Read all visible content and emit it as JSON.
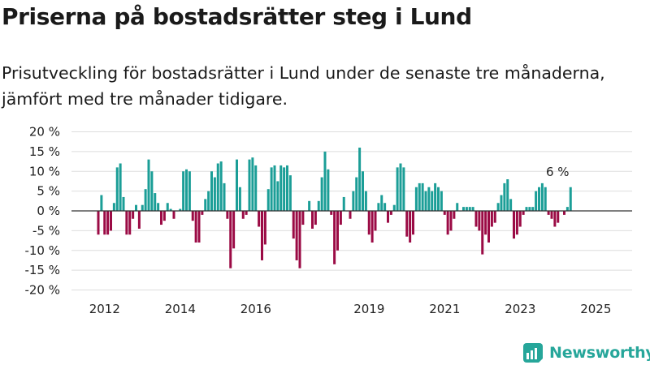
{
  "header": {
    "title": "Priserna på bostadsrätter steg i Lund",
    "subtitle": "Prisutveckling för bostadsrätter i Lund under de senaste tre månaderna, jämfört med tre månader tidigare."
  },
  "logo": {
    "text": "Newsworthy",
    "icon": "newsworthy-bar-chart-icon"
  },
  "colors": {
    "positive": "#1b9e97",
    "negative": "#9b0b45",
    "grid": "#dedede",
    "zero_line": "#333333"
  },
  "chart_data": {
    "type": "bar",
    "start": "2011-11",
    "frequency": "monthly",
    "x_ticks": [
      "2012",
      "2014",
      "2016",
      "2019",
      "2021",
      "2023",
      "2025"
    ],
    "y_ticks": [
      "20 %",
      "15 %",
      "10 %",
      "5 %",
      "0 %",
      "-5 %",
      "-10 %",
      "-15 %",
      "-20 %"
    ],
    "ylim": [
      -20,
      20
    ],
    "grid": true,
    "annotation": {
      "text": "6 %",
      "value": 6
    },
    "values": [
      -6,
      4,
      -6,
      -6,
      -5,
      2,
      11,
      12,
      3.5,
      -6,
      -6,
      -2,
      1.5,
      -4.5,
      1.5,
      5.5,
      13,
      10,
      4.5,
      2,
      -3.5,
      -2.5,
      2,
      0.5,
      -2,
      0,
      0.5,
      10,
      10.5,
      10,
      -2.5,
      -8,
      -8,
      -1,
      3,
      5,
      10,
      8.5,
      12,
      12.5,
      7,
      -2,
      -14.5,
      -9.5,
      13,
      6,
      -2,
      -1,
      13,
      13.5,
      11.5,
      -4,
      -12.5,
      -8.5,
      5.5,
      11,
      11.5,
      7.5,
      11.5,
      11,
      11.5,
      9,
      -7,
      -12.5,
      -14.5,
      -3.5,
      0,
      2.5,
      -4.5,
      -3.5,
      2.5,
      8.5,
      15,
      10.5,
      -1,
      -13.5,
      -10,
      -3.5,
      3.5,
      0,
      -2,
      5,
      8.5,
      16,
      10,
      5,
      -6,
      -8,
      -5,
      2,
      4,
      2,
      -3,
      -1,
      1.5,
      11,
      12,
      11,
      -6.5,
      -8,
      -6,
      6,
      7,
      7,
      5,
      6,
      5,
      7,
      6,
      5,
      -1,
      -6,
      -5,
      -2,
      2,
      0,
      1,
      1,
      1,
      1,
      -4,
      -5,
      -11,
      -6,
      -8,
      -4,
      -3,
      2,
      4,
      7,
      8,
      3,
      -7,
      -6,
      -4,
      -1,
      1,
      1,
      1,
      5,
      6,
      7,
      6,
      -1,
      -2,
      -4,
      -3,
      0,
      -1,
      1,
      6
    ]
  }
}
